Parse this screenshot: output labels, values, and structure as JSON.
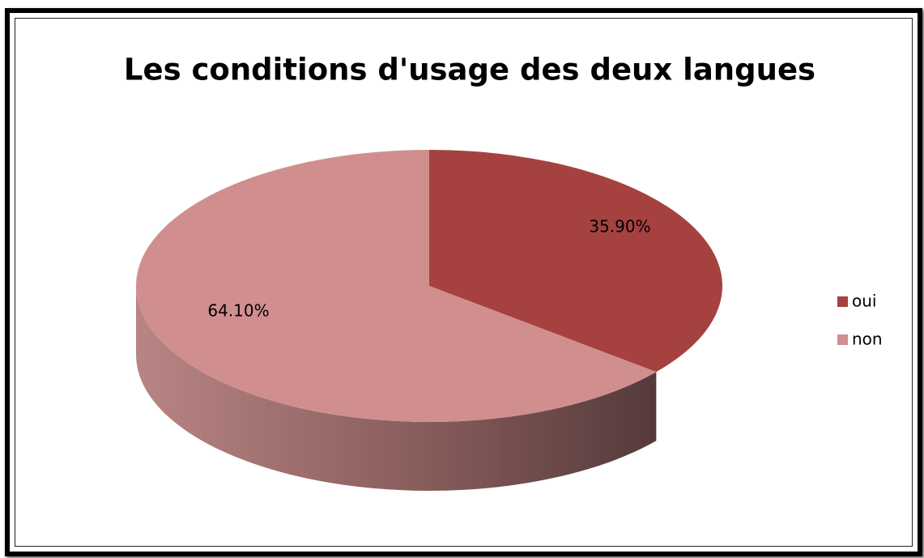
{
  "chart_data": {
    "type": "pie",
    "title": "Les conditions d'usage des deux langues",
    "categories": [
      "oui",
      "non"
    ],
    "values": [
      35.9,
      64.1
    ],
    "value_labels": [
      "35.90%",
      "64.10%"
    ],
    "colors": [
      "#a5423f",
      "#d08f8e"
    ],
    "legend": "right"
  }
}
